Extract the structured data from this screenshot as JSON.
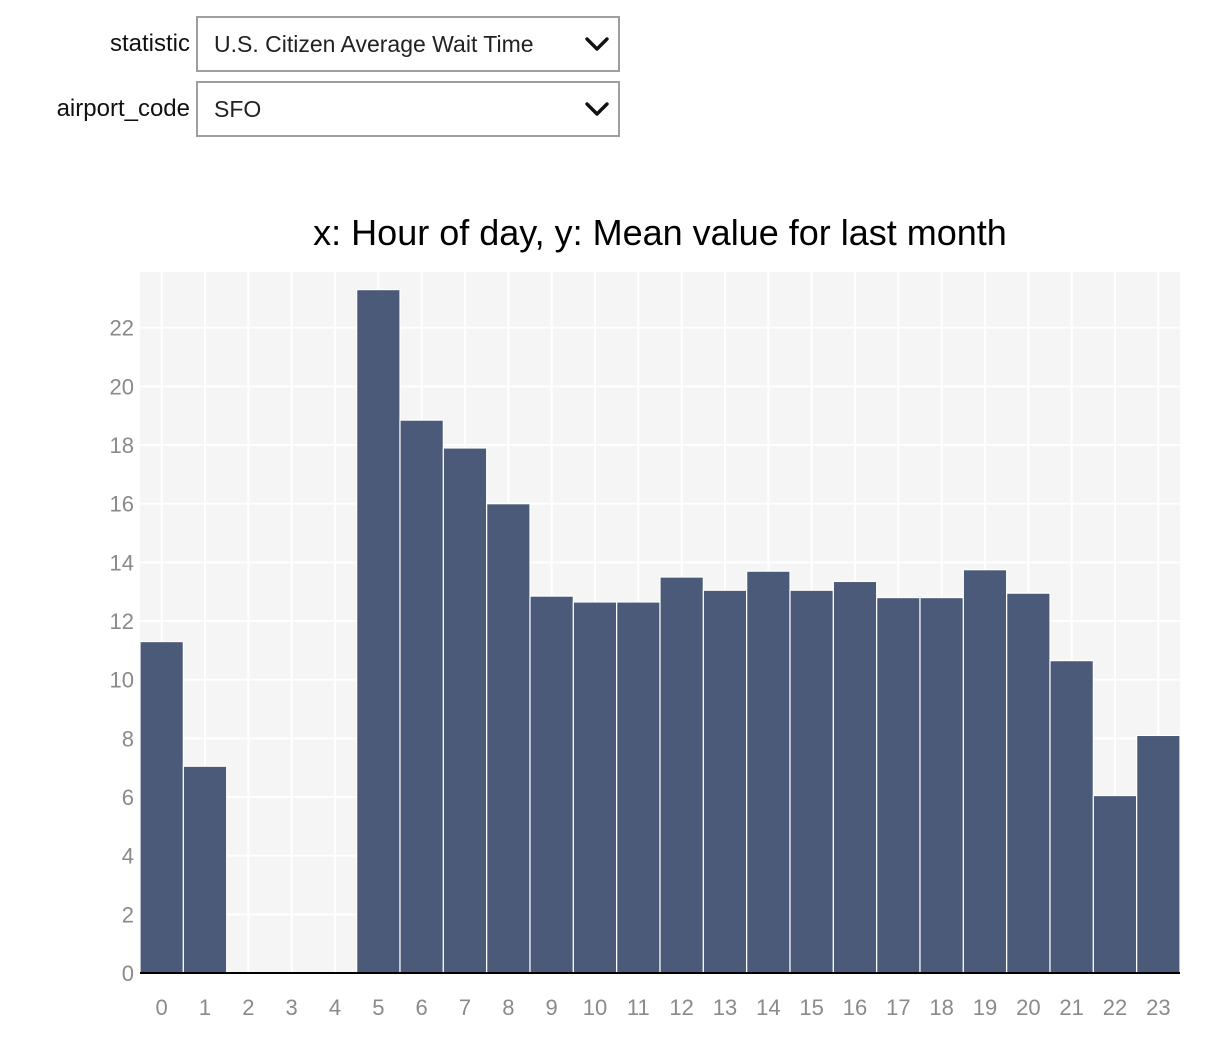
{
  "controls": {
    "statistic": {
      "label": "statistic",
      "value": "U.S. Citizen Average Wait  Time"
    },
    "airport_code": {
      "label": "airport_code",
      "value": "SFO"
    }
  },
  "colors": {
    "bar": "#4a5a78",
    "plot_background": "#f5f5f5",
    "gridline": "#ffffff",
    "tick_text": "#8a8a8a",
    "baseline": "#000000"
  },
  "icons": {
    "dropdown": "chevron-down-icon"
  },
  "chart_data": {
    "type": "bar",
    "title": "x: Hour of day, y: Mean value for last month",
    "xlabel": "",
    "ylabel": "",
    "categories": [
      "0",
      "1",
      "2",
      "3",
      "4",
      "5",
      "6",
      "7",
      "8",
      "9",
      "10",
      "11",
      "12",
      "13",
      "14",
      "15",
      "16",
      "17",
      "18",
      "19",
      "20",
      "21",
      "22",
      "23"
    ],
    "values": [
      11.3,
      7.05,
      0,
      0,
      0,
      23.3,
      18.85,
      17.9,
      16.0,
      12.85,
      12.65,
      12.65,
      13.5,
      13.05,
      13.7,
      13.05,
      13.35,
      12.8,
      12.8,
      13.75,
      12.95,
      10.65,
      6.05,
      8.1
    ],
    "yticks": [
      0,
      2,
      4,
      6,
      8,
      10,
      12,
      14,
      16,
      18,
      20,
      22
    ],
    "ylim": [
      0,
      23.9
    ],
    "grid": true,
    "legend": "none"
  }
}
